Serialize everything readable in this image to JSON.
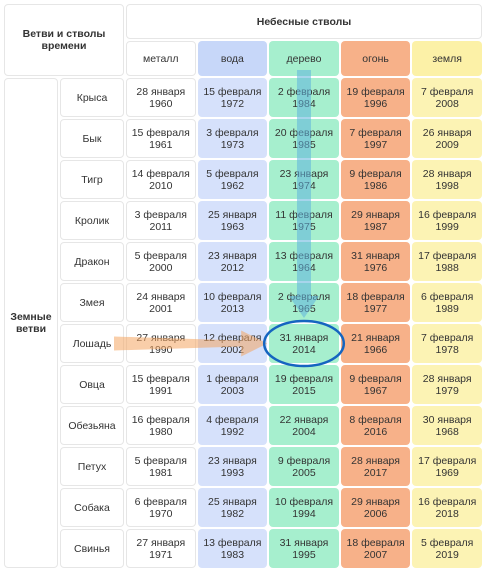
{
  "corner_label": [
    "Ветви и стволы",
    "времени"
  ],
  "stems_title": "Небесные стволы",
  "stems": [
    {
      "key": "metal",
      "label": "металл"
    },
    {
      "key": "water",
      "label": "вода"
    },
    {
      "key": "wood",
      "label": "дерево"
    },
    {
      "key": "fire",
      "label": "огонь"
    },
    {
      "key": "earth",
      "label": "земля"
    }
  ],
  "branches_title": [
    "Земные",
    "ветви"
  ],
  "rows": [
    {
      "branch": "Крыса",
      "cells": [
        [
          "28 января",
          "1960"
        ],
        [
          "15 февраля",
          "1972"
        ],
        [
          "2 февраля",
          "1984"
        ],
        [
          "19 февраля",
          "1996"
        ],
        [
          "7 февраля",
          "2008"
        ]
      ]
    },
    {
      "branch": "Бык",
      "cells": [
        [
          "15 февраля",
          "1961"
        ],
        [
          "3 февраля",
          "1973"
        ],
        [
          "20 февраля",
          "1985"
        ],
        [
          "7 февраля",
          "1997"
        ],
        [
          "26 января",
          "2009"
        ]
      ]
    },
    {
      "branch": "Тигр",
      "cells": [
        [
          "14 февраля",
          "2010"
        ],
        [
          "5 февраля",
          "1962"
        ],
        [
          "23 января",
          "1974"
        ],
        [
          "9 февраля",
          "1986"
        ],
        [
          "28 января",
          "1998"
        ]
      ]
    },
    {
      "branch": "Кролик",
      "cells": [
        [
          "3 февраля",
          "2011"
        ],
        [
          "25 января",
          "1963"
        ],
        [
          "11 февраля",
          "1975"
        ],
        [
          "29 января",
          "1987"
        ],
        [
          "16 февраля",
          "1999"
        ]
      ]
    },
    {
      "branch": "Дракон",
      "cells": [
        [
          "5 февраля",
          "2000"
        ],
        [
          "23 января",
          "2012"
        ],
        [
          "13 февраля",
          "1964"
        ],
        [
          "31 января",
          "1976"
        ],
        [
          "17 февраля",
          "1988"
        ]
      ]
    },
    {
      "branch": "Змея",
      "cells": [
        [
          "24 января",
          "2001"
        ],
        [
          "10 февраля",
          "2013"
        ],
        [
          "2 февраля",
          "1965"
        ],
        [
          "18 февраля",
          "1977"
        ],
        [
          "6 февраля",
          "1989"
        ]
      ]
    },
    {
      "branch": "Лошадь",
      "cells": [
        [
          "27 января",
          "1990"
        ],
        [
          "12 февраля",
          "2002"
        ],
        [
          "31 января",
          "2014"
        ],
        [
          "21 января",
          "1966"
        ],
        [
          "7 февраля",
          "1978"
        ]
      ]
    },
    {
      "branch": "Овца",
      "cells": [
        [
          "15 февраля",
          "1991"
        ],
        [
          "1 февраля",
          "2003"
        ],
        [
          "19 февраля",
          "2015"
        ],
        [
          "9 февраля",
          "1967"
        ],
        [
          "28 января",
          "1979"
        ]
      ]
    },
    {
      "branch": "Обезьяна",
      "cells": [
        [
          "16 февраля",
          "1980"
        ],
        [
          "4 февраля",
          "1992"
        ],
        [
          "22 января",
          "2004"
        ],
        [
          "8 февраля",
          "2016"
        ],
        [
          "30 января",
          "1968"
        ]
      ]
    },
    {
      "branch": "Петух",
      "cells": [
        [
          "5 февраля",
          "1981"
        ],
        [
          "23 января",
          "1993"
        ],
        [
          "9 февраля",
          "2005"
        ],
        [
          "28 января",
          "2017"
        ],
        [
          "17 февраля",
          "1969"
        ]
      ]
    },
    {
      "branch": "Собака",
      "cells": [
        [
          "6 февраля",
          "1970"
        ],
        [
          "25 января",
          "1982"
        ],
        [
          "10 февраля",
          "1994"
        ],
        [
          "29 января",
          "2006"
        ],
        [
          "16 февраля",
          "2018"
        ]
      ]
    },
    {
      "branch": "Свинья",
      "cells": [
        [
          "27 января",
          "1971"
        ],
        [
          "13 февраля",
          "1983"
        ],
        [
          "31 января",
          "1995"
        ],
        [
          "18 февраля",
          "2007"
        ],
        [
          "5 февраля",
          "2019"
        ]
      ]
    }
  ],
  "highlight": {
    "row_index": 6,
    "column_index": 2
  },
  "colors": {
    "water": "#d6e1fb",
    "wood": "#a6efce",
    "fire": "#f7b189",
    "earth": "#fcf3b4",
    "arrow_down": "#5fb3dc",
    "arrow_right": "#f4a562",
    "ring": "#1565c0"
  }
}
